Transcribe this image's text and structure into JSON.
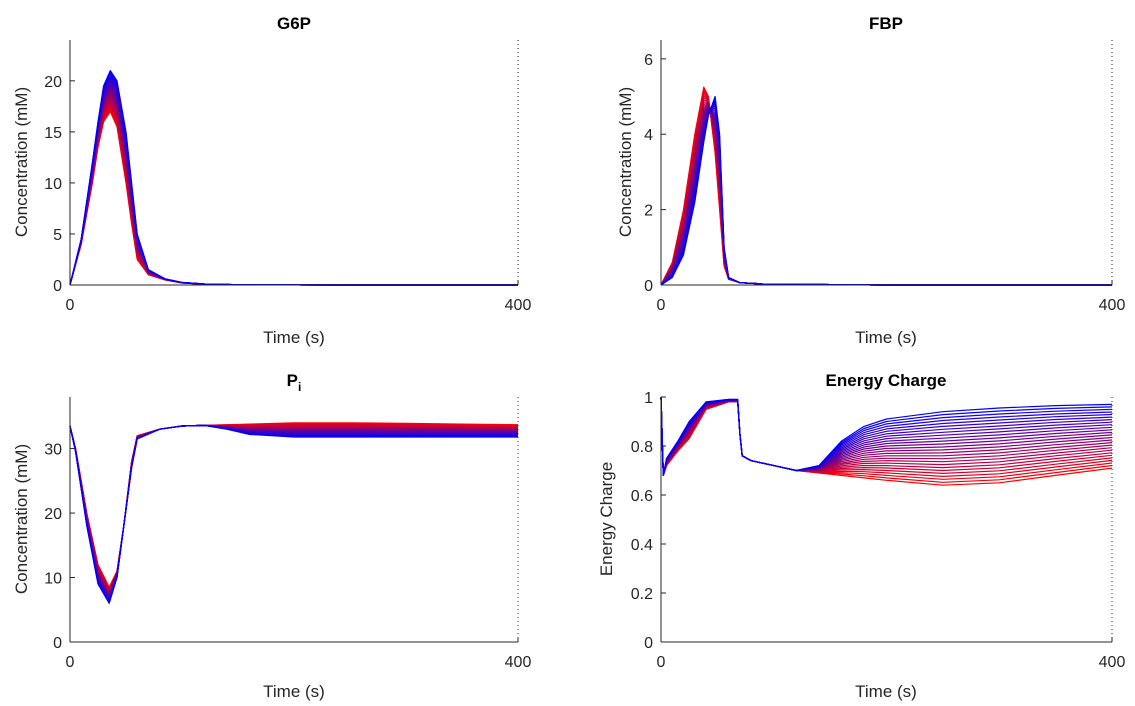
{
  "figure": {
    "color_low": "#ff0000",
    "color_high": "#0000ff",
    "curve_count": 26
  },
  "chart_data": [
    {
      "id": "g6p",
      "type": "line",
      "title": "G6P",
      "xlabel": "Time (s)",
      "ylabel": "Concentration (mM)",
      "xlim": [
        0,
        400
      ],
      "ylim": [
        0,
        24
      ],
      "xticks": [
        0,
        400
      ],
      "xtick_labels": [
        "0",
        "400"
      ],
      "yticks": [
        0,
        5,
        10,
        15,
        20
      ],
      "ytick_labels": [
        "0",
        "5",
        "10",
        "15",
        "20"
      ],
      "series_from": {
        "time": [
          0,
          10,
          20,
          25,
          30,
          36,
          42,
          50,
          55,
          60,
          70,
          85,
          100,
          120,
          150,
          200,
          250,
          300,
          350,
          400
        ],
        "start": [
          0,
          4,
          10,
          13.5,
          16,
          17.0,
          15.5,
          10,
          6,
          2.5,
          1.0,
          0.5,
          0.2,
          0.08,
          0.03,
          0.01,
          0,
          0,
          0,
          0
        ],
        "end": [
          0,
          4.5,
          12,
          16,
          19.5,
          21.0,
          20.0,
          15,
          10,
          5,
          1.5,
          0.6,
          0.25,
          0.1,
          0.03,
          0.01,
          0,
          0,
          0,
          0
        ]
      }
    },
    {
      "id": "fbp",
      "type": "line",
      "title": "FBP",
      "xlabel": "Time (s)",
      "ylabel": "Concentration (mM)",
      "xlim": [
        0,
        400
      ],
      "ylim": [
        0,
        6.5
      ],
      "xticks": [
        0,
        400
      ],
      "xtick_labels": [
        "0",
        "400"
      ],
      "yticks": [
        0,
        2,
        4,
        6
      ],
      "ytick_labels": [
        "0",
        "2",
        "4",
        "6"
      ],
      "series_from": {
        "time": [
          0,
          10,
          20,
          30,
          38,
          42,
          48,
          52,
          56,
          60,
          70,
          90,
          120,
          150,
          200,
          300,
          400
        ],
        "start": [
          0,
          0.6,
          2.0,
          4.0,
          5.25,
          5.0,
          3.5,
          2.0,
          0.5,
          0.15,
          0.06,
          0.03,
          0.02,
          0.01,
          0,
          0,
          0
        ],
        "end": [
          0,
          0.2,
          0.8,
          2.2,
          3.8,
          4.5,
          5.0,
          4.0,
          1.0,
          0.2,
          0.06,
          0.03,
          0.02,
          0.01,
          0,
          0,
          0
        ]
      }
    },
    {
      "id": "pi",
      "type": "line",
      "title": "P",
      "title_subscript": "i",
      "xlabel": "Time (s)",
      "ylabel": "Concentration (mM)",
      "xlim": [
        0,
        400
      ],
      "ylim": [
        0,
        38
      ],
      "xticks": [
        0,
        400
      ],
      "xtick_labels": [
        "0",
        "400"
      ],
      "yticks": [
        0,
        10,
        20,
        30
      ],
      "ytick_labels": [
        "0",
        "10",
        "20",
        "30"
      ],
      "series_from": {
        "time": [
          0,
          5,
          15,
          25,
          35,
          42,
          48,
          55,
          60,
          80,
          100,
          120,
          140,
          160,
          200,
          250,
          300,
          350,
          400
        ],
        "start": [
          33.5,
          30,
          20,
          12,
          8.5,
          11,
          18,
          28,
          32,
          33,
          33.5,
          33.6,
          33.7,
          33.8,
          34,
          34,
          33.9,
          33.8,
          33.7
        ],
        "end": [
          33.5,
          29.5,
          18,
          9,
          6.0,
          10,
          18,
          27,
          31.5,
          33,
          33.5,
          33.6,
          33.0,
          32.2,
          31.8,
          31.8,
          31.8,
          31.8,
          31.8
        ]
      }
    },
    {
      "id": "ec",
      "type": "line",
      "title": "Energy Charge",
      "xlabel": "Time (s)",
      "ylabel": "Energy Charge",
      "xlim": [
        0,
        400
      ],
      "ylim": [
        0,
        1
      ],
      "xticks": [
        0,
        400
      ],
      "xtick_labels": [
        "0",
        "400"
      ],
      "yticks": [
        0,
        0.2,
        0.4,
        0.6,
        0.8,
        1
      ],
      "ytick_labels": [
        "0",
        "0.2",
        "0.4",
        "0.6",
        "0.8",
        "1"
      ],
      "series_from": {
        "time": [
          0,
          2,
          5,
          15,
          25,
          40,
          60,
          68,
          70,
          72,
          80,
          100,
          120,
          140,
          160,
          180,
          200,
          250,
          300,
          350,
          400
        ],
        "start": [
          1.0,
          0.68,
          0.72,
          0.78,
          0.83,
          0.95,
          0.98,
          0.98,
          0.85,
          0.76,
          0.74,
          0.72,
          0.7,
          0.69,
          0.68,
          0.67,
          0.66,
          0.64,
          0.65,
          0.68,
          0.71
        ],
        "end": [
          1.0,
          0.68,
          0.75,
          0.82,
          0.9,
          0.98,
          0.99,
          0.99,
          0.85,
          0.76,
          0.74,
          0.72,
          0.7,
          0.72,
          0.82,
          0.88,
          0.91,
          0.94,
          0.955,
          0.965,
          0.97
        ]
      }
    }
  ]
}
